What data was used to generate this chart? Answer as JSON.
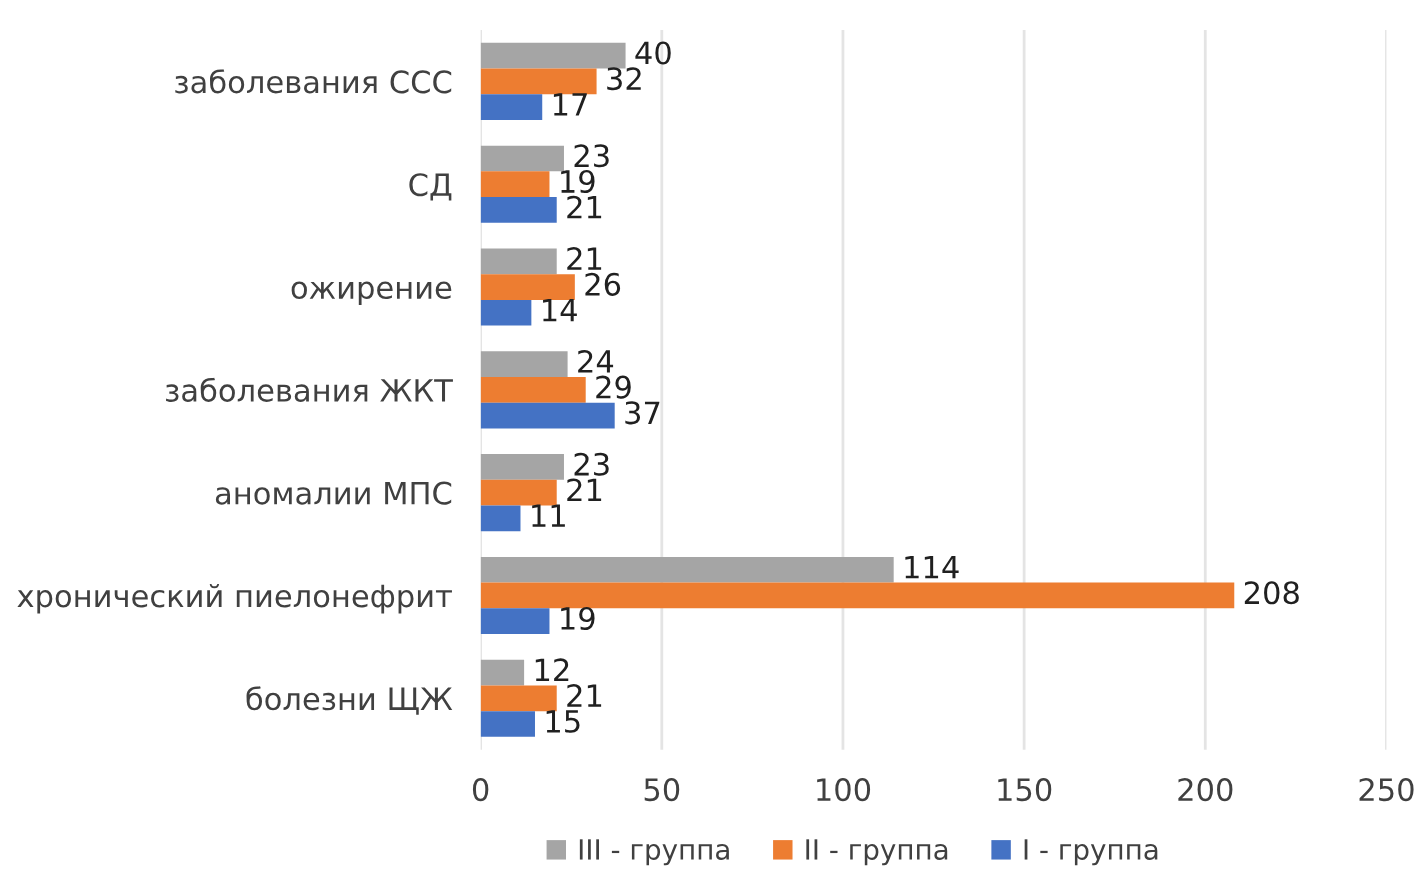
{
  "chart_data": {
    "type": "bar",
    "orientation": "horizontal",
    "categories": [
      "заболевания ССС",
      "СД",
      "ожирение",
      "заболевания ЖКТ",
      "аномалии МПС",
      "хронический пиелонефрит",
      "болезни ЩЖ"
    ],
    "series": [
      {
        "name": "III - группа",
        "color": "#a5a5a5",
        "values": [
          40,
          23,
          21,
          24,
          23,
          114,
          12
        ]
      },
      {
        "name": "II - группа",
        "color": "#ed7d31",
        "values": [
          32,
          19,
          26,
          29,
          21,
          208,
          21
        ]
      },
      {
        "name": "I - группа",
        "color": "#4472c4",
        "values": [
          17,
          21,
          14,
          37,
          11,
          19,
          15
        ]
      }
    ],
    "xlim": [
      0,
      250
    ],
    "xticks": [
      0,
      50,
      100,
      150,
      200,
      250
    ],
    "grid": "x",
    "legend": "bottom",
    "data_labels": true
  }
}
